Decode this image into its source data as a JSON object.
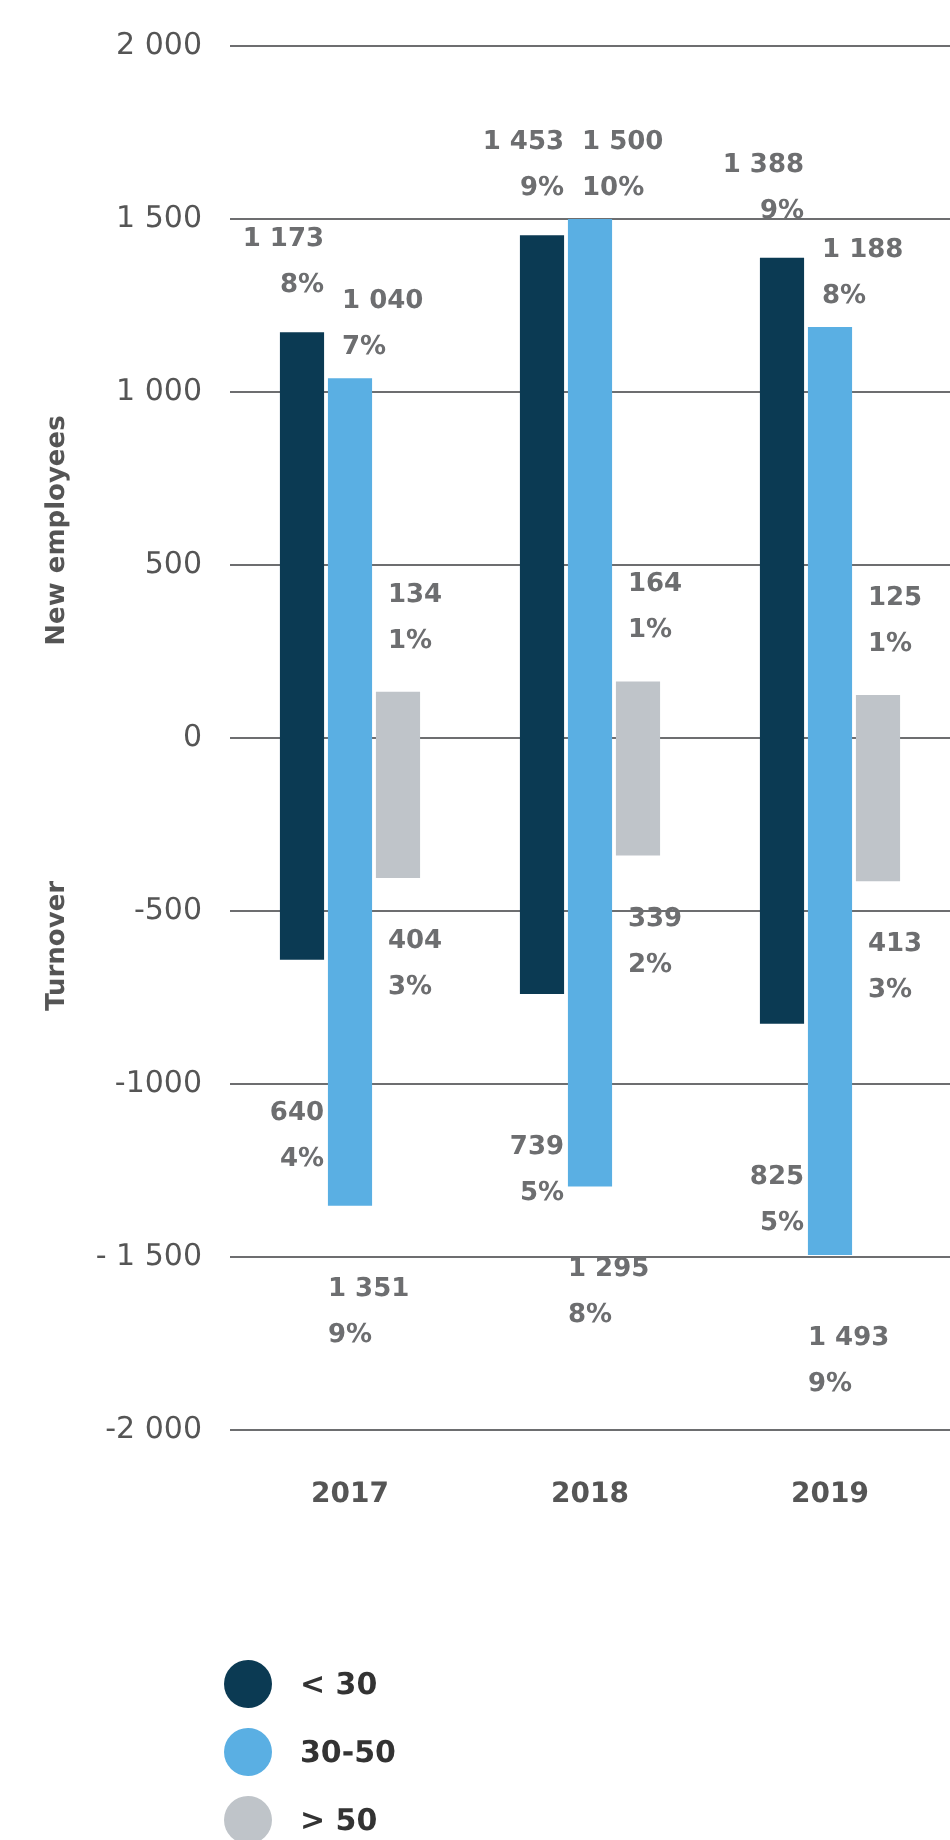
{
  "chart_data": {
    "type": "bar",
    "ylabel": "New employees",
    "categories": [
      "2017",
      "2018",
      "2019"
    ],
    "series": [
      {
        "name": "< 30",
        "color": "#0b3a53",
        "base": [
          -640,
          -739,
          -825
        ],
        "values": [
          1813,
          2192,
          2213
        ]
      },
      {
        "name": "30-50",
        "color": "#5aafe3",
        "base": [
          -1351,
          -1295,
          -1493
        ],
        "values": [
          2391,
          2795,
          2681
        ]
      },
      {
        "name": "> 50",
        "color": "#bfc4c9",
        "base": [
          -404,
          -339,
          -413
        ],
        "values": [
          538,
          503,
          538
        ]
      }
    ],
    "annotations": [
      "Turnover",
      "1 173\n8%",
      "640\n4%",
      "1 040\n7%",
      "1 351\n9%",
      "134\n1%",
      "404\n3%",
      "1 453\n9%",
      "739\n5%",
      "1 500\n10%",
      "1 295\n8%",
      "164\n1%",
      "339\n2%",
      "1 388\n9%",
      "825\n5%",
      "1 188\n8%",
      "1 493\n9%",
      "125\n1%",
      "413\n3%"
    ],
    "ylim": [
      -2000,
      2000
    ],
    "yticks": [
      {
        "value": -2000,
        "label": "-2 000"
      },
      {
        "value": -1500,
        "label": "- 1 500"
      },
      {
        "value": -1000,
        "label": "-1000"
      },
      -500,
      0,
      500,
      {
        "value": 1000,
        "label": "1 000"
      },
      {
        "value": 1500,
        "label": "1 500"
      },
      {
        "value": 2000,
        "label": "2 000"
      }
    ],
    "grid": "y",
    "legend": "bottom left"
  }
}
